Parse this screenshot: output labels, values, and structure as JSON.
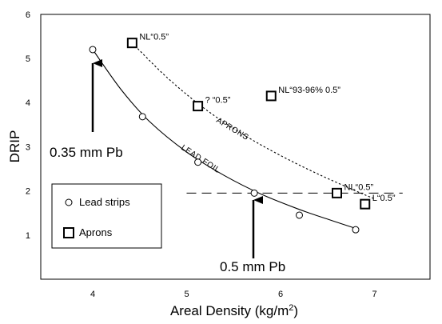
{
  "chart_data": {
    "type": "scatter",
    "xlabel": "Areal Density (kg/m",
    "xlabel_sup": "2",
    "xlabel_end": ")",
    "ylabel": "DRIP",
    "xlim": [
      3.5,
      7.6
    ],
    "ylim": [
      0,
      6
    ],
    "xticks": [
      "4",
      "5",
      "6",
      "7"
    ],
    "yticks": [
      "1",
      "2",
      "3",
      "4",
      "5",
      "6"
    ],
    "grid": false,
    "legend_position": "bottom-left",
    "series": [
      {
        "name": "Lead strips",
        "marker": "circle",
        "points": [
          {
            "x": 4.0,
            "y": 5.2
          },
          {
            "x": 4.53,
            "y": 3.68
          },
          {
            "x": 5.12,
            "y": 2.65
          },
          {
            "x": 5.72,
            "y": 1.95
          },
          {
            "x": 6.2,
            "y": 1.45
          },
          {
            "x": 6.8,
            "y": 1.12
          }
        ]
      },
      {
        "name": "Aprons",
        "marker": "square",
        "points": [
          {
            "x": 4.42,
            "y": 5.35,
            "label": "NL“0.5”"
          },
          {
            "x": 5.12,
            "y": 3.92,
            "label": "? “0.5”"
          },
          {
            "x": 5.9,
            "y": 4.15,
            "label": "NL“93-96% 0.5”"
          },
          {
            "x": 6.6,
            "y": 1.95,
            "label": "NL“0.5”"
          },
          {
            "x": 6.9,
            "y": 1.7,
            "label": "L“0.5”"
          }
        ]
      }
    ],
    "fit_curves": [
      {
        "name": "LEAD FOIL",
        "style": "solid",
        "points": [
          [
            4.0,
            5.2
          ],
          [
            4.3,
            4.3
          ],
          [
            4.6,
            3.58
          ],
          [
            5.0,
            2.88
          ],
          [
            5.4,
            2.35
          ],
          [
            5.8,
            1.92
          ],
          [
            6.2,
            1.58
          ],
          [
            6.5,
            1.36
          ],
          [
            6.8,
            1.15
          ]
        ]
      },
      {
        "name": "APRONS",
        "style": "dotted",
        "points": [
          [
            4.42,
            5.35
          ],
          [
            4.8,
            4.55
          ],
          [
            5.2,
            3.85
          ],
          [
            5.6,
            3.28
          ],
          [
            6.0,
            2.8
          ],
          [
            6.4,
            2.38
          ],
          [
            6.8,
            2.0
          ],
          [
            7.0,
            1.82
          ]
        ]
      }
    ],
    "reference_line": {
      "y": 1.95,
      "x_from": 5.0,
      "x_to": 7.3,
      "style": "dashed"
    },
    "annotations": [
      {
        "text": "0.35 mm Pb",
        "x": 4.0,
        "y": 5.2
      },
      {
        "text": "0.5 mm Pb",
        "x": 5.72,
        "y": 1.95
      }
    ]
  }
}
